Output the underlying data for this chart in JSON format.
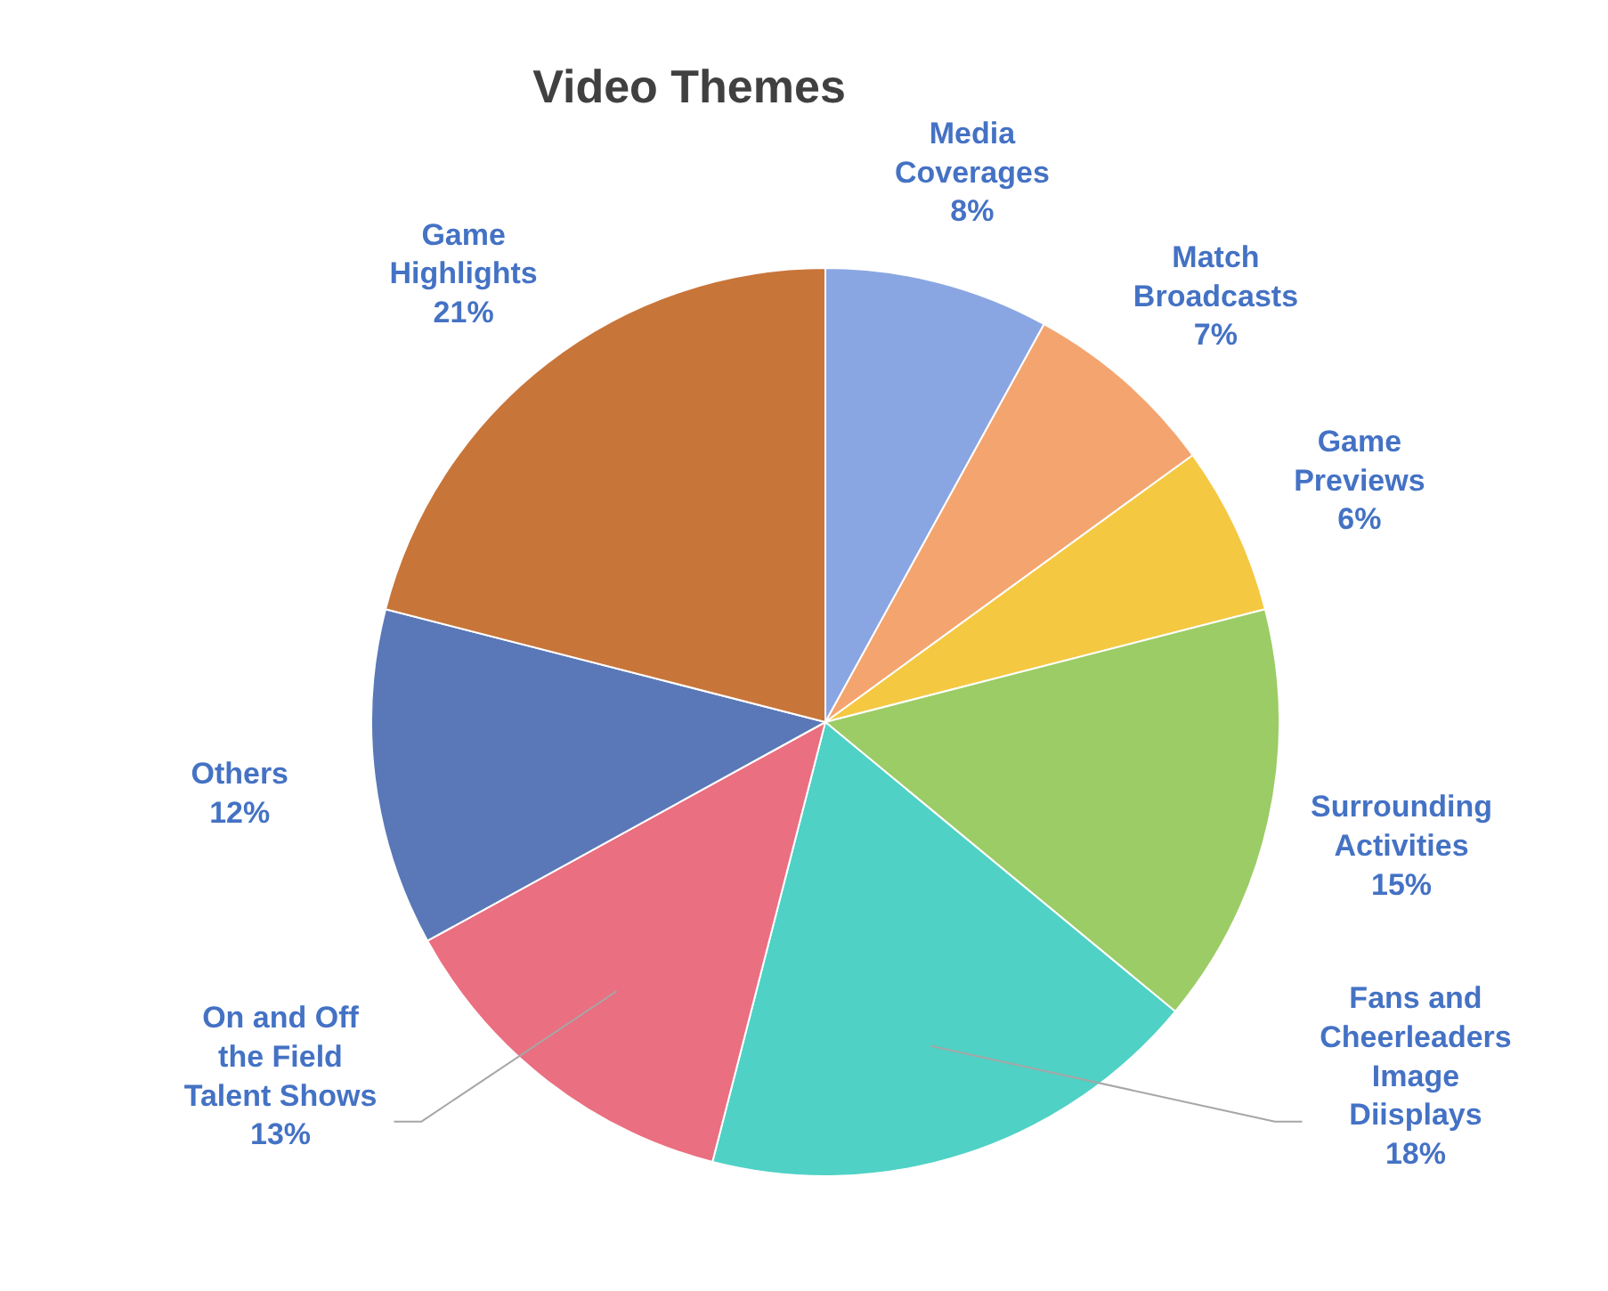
{
  "chart_data": {
    "type": "pie",
    "title": "Video Themes",
    "categories": [
      "Media Coverages",
      "Match Broadcasts",
      "Game Previews",
      "Surrounding Activities",
      "Fans and Cheerleaders Image Diisplays",
      "On and Off the Field Talent Shows",
      "Others",
      "Game Highlights"
    ],
    "values": [
      8,
      7,
      6,
      15,
      18,
      13,
      12,
      21
    ],
    "colors": [
      "#8aa6e2",
      "#f4a46e",
      "#f5c842",
      "#9ccc65",
      "#4fd1c5",
      "#ea6f80",
      "#5a78b8",
      "#c8753a"
    ],
    "value_labels": [
      "8%",
      "7%",
      "6%",
      "15%",
      "18%",
      "13%",
      "12%",
      "21%"
    ]
  }
}
